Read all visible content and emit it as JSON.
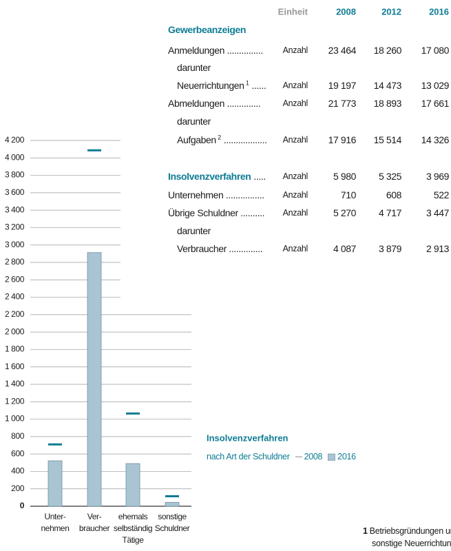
{
  "table": {
    "columns": [
      "Einheit",
      "2008",
      "2012",
      "2016"
    ],
    "rows": [
      {
        "label": "Gewerbeanzeigen",
        "heading": true
      },
      {
        "label": "Anmeldungen ...............",
        "unit": "Anzahl",
        "values": [
          "23 464",
          "18 260",
          "17 080"
        ]
      },
      {
        "label": "darunter",
        "indent": true
      },
      {
        "label": "Neuerrichtungen",
        "note": "1",
        "dots": "......",
        "indent": true,
        "unit": "Anzahl",
        "values": [
          "19 197",
          "14 473",
          "13 029"
        ]
      },
      {
        "label": "Abmeldungen ..............",
        "unit": "Anzahl",
        "values": [
          "21 773",
          "18 893",
          "17 661"
        ]
      },
      {
        "label": "darunter",
        "indent": true
      },
      {
        "label": "Aufgaben",
        "note": "2",
        "dots": "..................",
        "indent": true,
        "unit": "Anzahl",
        "values": [
          "17 916",
          "15 514",
          "14 326"
        ]
      },
      {
        "label": "Insolvenzverfahren",
        "dots": ".....",
        "heading": true,
        "unit": "Anzahl",
        "values": [
          "5 980",
          "5 325",
          "3 969"
        ]
      },
      {
        "label": "Unternehmen ................",
        "unit": "Anzahl",
        "values": [
          "710",
          "608",
          "522"
        ]
      },
      {
        "label": "Übrige Schuldner ..........",
        "unit": "Anzahl",
        "values": [
          "5 270",
          "4 717",
          "3 447"
        ]
      },
      {
        "label": "darunter",
        "indent": true
      },
      {
        "label": "Verbraucher ..............",
        "indent": true,
        "unit": "Anzahl",
        "values": [
          "4 087",
          "3 879",
          "2 913"
        ]
      }
    ]
  },
  "chart_data": {
    "type": "bar",
    "title": "Insolvenzverfahren",
    "subtitle": "nach Art der Schuldner",
    "categories": [
      "Unter-\nnehmen",
      "Ver-\nbraucher",
      "ehemals\nselbständig\nTätige",
      "sonstige\nSchuldner"
    ],
    "series": [
      {
        "name": "2008",
        "color": "#0e7c94",
        "marker": "dash",
        "values": [
          710,
          4087,
          1065,
          115
        ]
      },
      {
        "name": "2016",
        "color": "#a9c5d3",
        "marker": "bar",
        "values": [
          522,
          2913,
          490,
          45
        ]
      }
    ],
    "ylim": [
      0,
      4200
    ],
    "yticks": [
      0,
      200,
      400,
      600,
      800,
      {
        "value": 1000,
        "label": "1 000"
      },
      {
        "value": 1200,
        "label": "1 200"
      },
      {
        "value": 1400,
        "label": "1 400"
      },
      {
        "value": 1600,
        "label": "1 600"
      },
      {
        "value": 1800,
        "label": "1 800"
      },
      {
        "value": 2000,
        "label": "2 000"
      },
      {
        "value": 2200,
        "label": "2 200"
      },
      {
        "value": 2400,
        "label": "2 400"
      },
      {
        "value": 2600,
        "label": "2 600"
      },
      {
        "value": 2800,
        "label": "2 800"
      },
      {
        "value": 3000,
        "label": "3 000"
      },
      {
        "value": 3200,
        "label": "3 200"
      },
      {
        "value": 3400,
        "label": "3 400"
      },
      {
        "value": 3600,
        "label": "3 600"
      },
      {
        "value": 3800,
        "label": "3 800"
      },
      {
        "value": 4000,
        "label": "4 000"
      },
      {
        "value": 4200,
        "label": "4 200"
      }
    ],
    "grid": true
  },
  "footnotes": [
    {
      "marker": "1",
      "lines": [
        "Betriebsgründungen un",
        "sonstige Neuerrichtung"
      ]
    }
  ]
}
